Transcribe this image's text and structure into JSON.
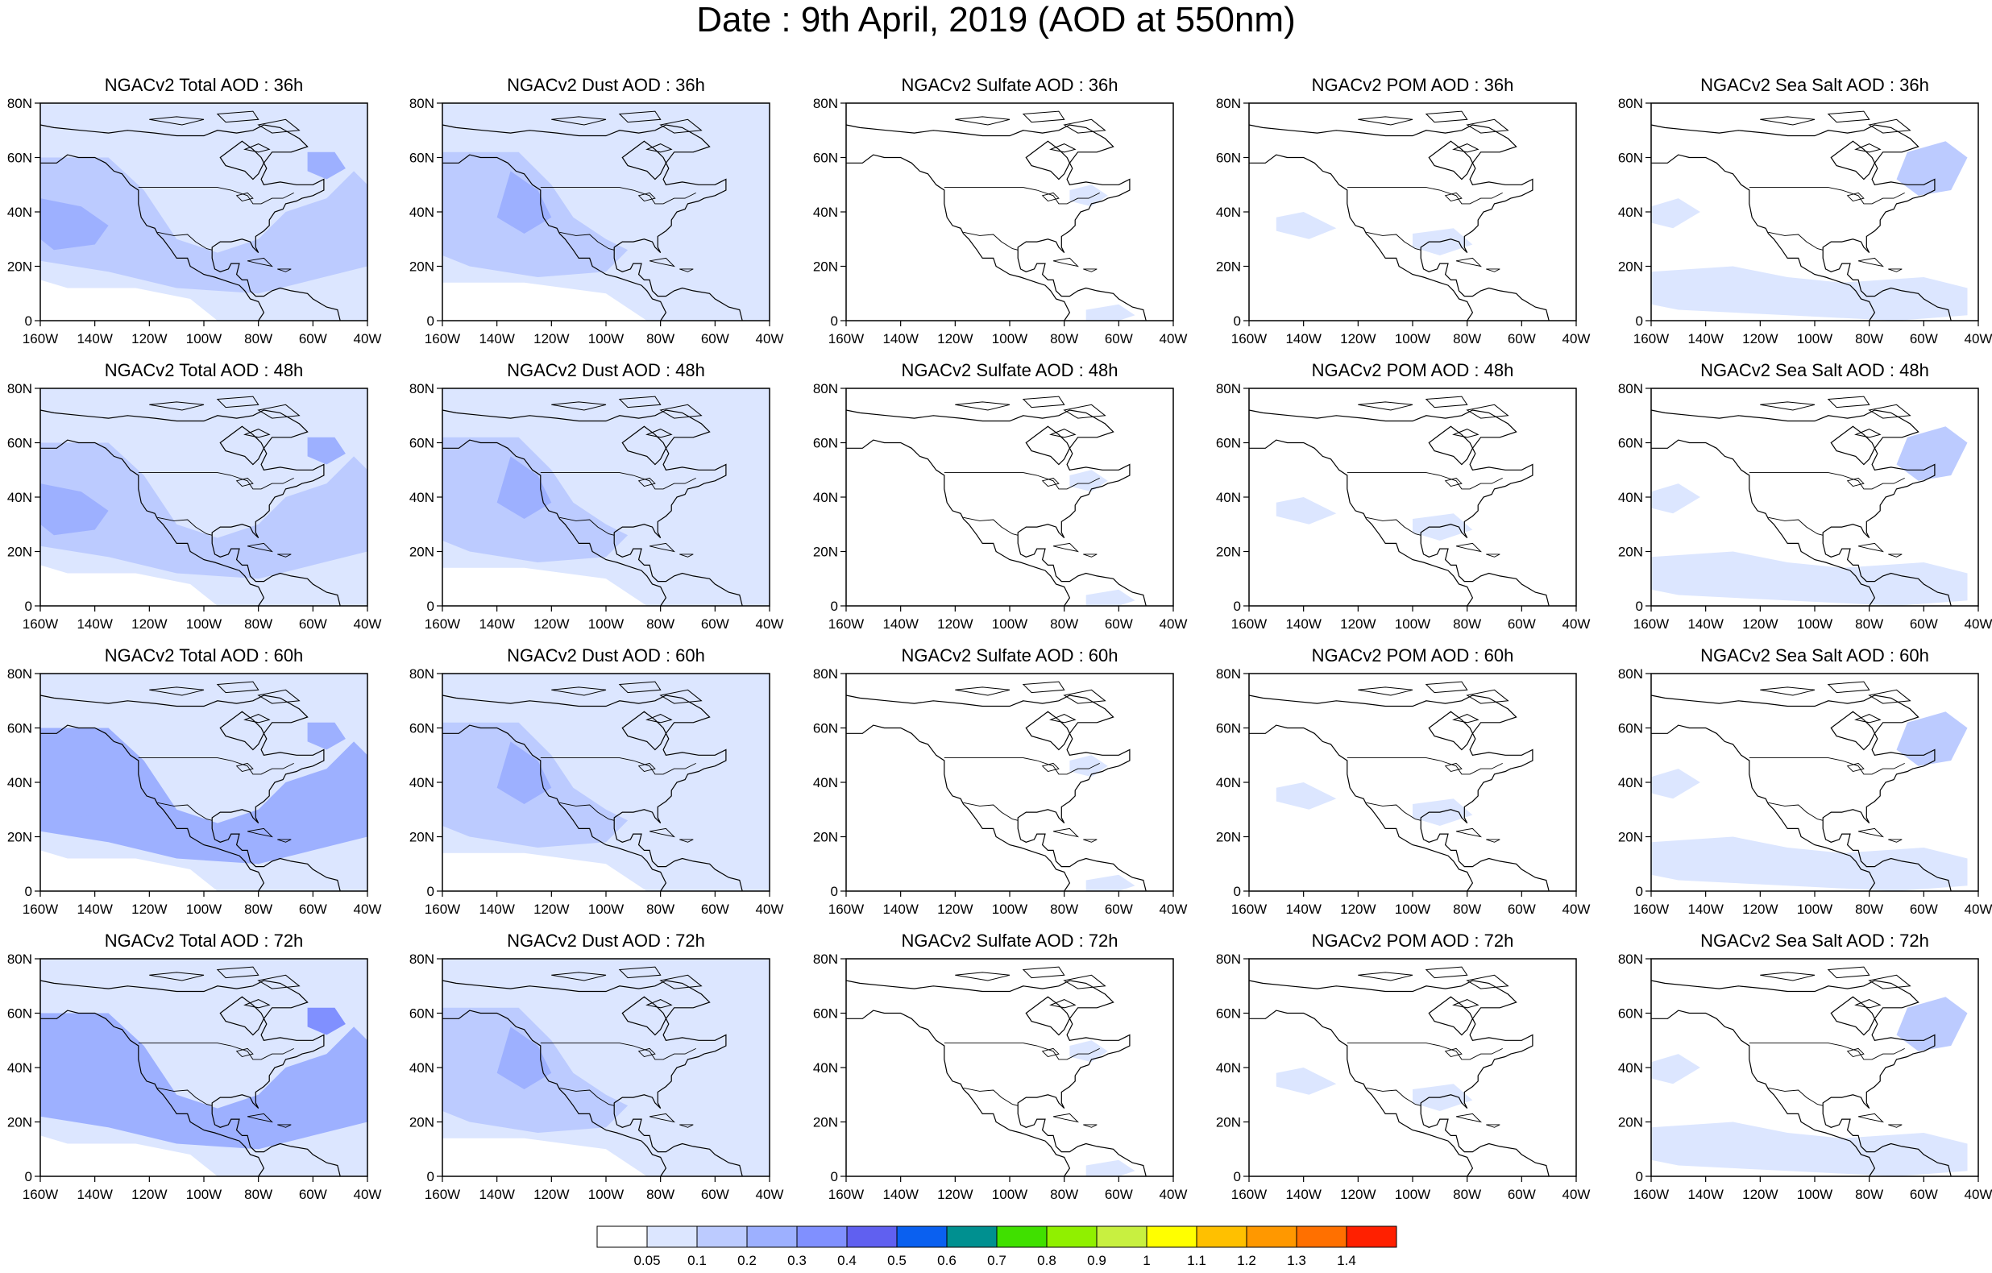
{
  "title": "Date : 9th April, 2019 (AOD at 550nm)",
  "lon_ticks": [
    "160W",
    "140W",
    "120W",
    "100W",
    "80W",
    "60W",
    "40W"
  ],
  "lat_ticks": [
    "0",
    "20N",
    "40N",
    "60N",
    "80N"
  ],
  "panel_titles": [
    [
      "NGACv2 Total AOD : 36h",
      "NGACv2 Dust AOD : 36h",
      "NGACv2 Sulfate AOD : 36h",
      "NGACv2 POM AOD : 36h",
      "NGACv2 Sea Salt AOD : 36h"
    ],
    [
      "NGACv2 Total AOD : 48h",
      "NGACv2 Dust AOD : 48h",
      "NGACv2 Sulfate AOD : 48h",
      "NGACv2 POM AOD : 48h",
      "NGACv2 Sea Salt AOD : 48h"
    ],
    [
      "NGACv2 Total AOD : 60h",
      "NGACv2 Dust AOD : 60h",
      "NGACv2 Sulfate AOD : 60h",
      "NGACv2 POM AOD : 60h",
      "NGACv2 Sea Salt AOD : 60h"
    ],
    [
      "NGACv2 Total AOD : 72h",
      "NGACv2 Dust AOD : 72h",
      "NGACv2 Sulfate AOD : 72h",
      "NGACv2 POM AOD : 72h",
      "NGACv2 Sea Salt  AOD : 72h"
    ]
  ],
  "colorbar": {
    "labels": [
      "0.05",
      "0.1",
      "0.2",
      "0.3",
      "0.4",
      "0.5",
      "0.6",
      "0.7",
      "0.8",
      "0.9",
      "1",
      "1.1",
      "1.2",
      "1.3",
      "1.4"
    ],
    "colors": [
      "#ffffff",
      "#dce6ff",
      "#bccbff",
      "#9db0ff",
      "#8090ff",
      "#6060f0",
      "#0a60f0",
      "#009090",
      "#40e000",
      "#90f000",
      "#c8f040",
      "#ffff00",
      "#ffc000",
      "#ff9800",
      "#ff7000",
      "#ff2000"
    ]
  },
  "map_colors": {
    "light": "#dce6ff",
    "medium": "#bccbff",
    "strong": "#9db0ff",
    "deep": "#8090ff"
  }
}
